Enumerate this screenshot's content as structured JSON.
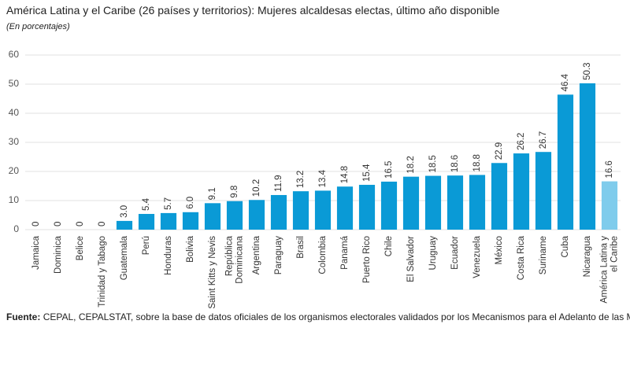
{
  "chart_data": {
    "type": "bar",
    "title": "América Latina y el Caribe (26 países y territorios): Mujeres alcaldesas electas, último año disponible",
    "subtitle": "(En porcentajes)",
    "categories": [
      "Jamaica",
      "Dominica",
      "Belice",
      "Trinidad y Tabago",
      "Guatemala",
      "Perú",
      "Honduras",
      "Bolivia",
      "Saint Kitts y Nevis",
      "República\nDominicana",
      "Argentina",
      "Paraguay",
      "Brasil",
      "Colombia",
      "Panamá",
      "Puerto Rico",
      "Chile",
      "El Salvador",
      "Uruguay",
      "Ecuador",
      "Venezuela",
      "México",
      "Costa Rica",
      "Suriname",
      "Cuba",
      "Nicaragua",
      "América Latina y\nel Caribe"
    ],
    "values": [
      0,
      0,
      0,
      0,
      3.0,
      5.4,
      5.7,
      6.0,
      9.1,
      9.8,
      10.2,
      11.9,
      13.2,
      13.4,
      14.8,
      15.4,
      16.5,
      18.2,
      18.5,
      18.6,
      18.8,
      22.9,
      26.2,
      26.7,
      46.4,
      50.3,
      16.6
    ],
    "value_labels": [
      "0",
      "0",
      "0",
      "0",
      "3.0",
      "5.4",
      "5.7",
      "6.0",
      "9.1",
      "9.8",
      "10.2",
      "11.9",
      "13.2",
      "13.4",
      "14.8",
      "15.4",
      "16.5",
      "18.2",
      "18.5",
      "18.6",
      "18.8",
      "22.9",
      "26.2",
      "26.7",
      "46.4",
      "50.3",
      "16.6"
    ],
    "colors": [
      "#0a9ad6",
      "#0a9ad6",
      "#0a9ad6",
      "#0a9ad6",
      "#0a9ad6",
      "#0a9ad6",
      "#0a9ad6",
      "#0a9ad6",
      "#0a9ad6",
      "#0a9ad6",
      "#0a9ad6",
      "#0a9ad6",
      "#0a9ad6",
      "#0a9ad6",
      "#0a9ad6",
      "#0a9ad6",
      "#0a9ad6",
      "#0a9ad6",
      "#0a9ad6",
      "#0a9ad6",
      "#0a9ad6",
      "#0a9ad6",
      "#0a9ad6",
      "#0a9ad6",
      "#0a9ad6",
      "#0a9ad6",
      "#7fccec"
    ],
    "ylim": [
      0,
      60
    ],
    "yticks": [
      0,
      10,
      20,
      30,
      40,
      50,
      60
    ],
    "grid": true
  },
  "footer": {
    "label": "Fuente:",
    "text": "CEPAL, CEPALSTAT, sobre la base de datos oficiales de los organismos electorales validados por los Mecanismos para el Adelanto de las Mujeres."
  }
}
